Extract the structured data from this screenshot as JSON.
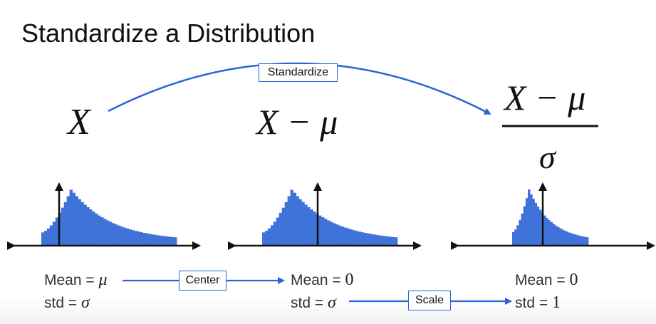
{
  "title": "Standardize a Distribution",
  "arc_label": "Standardize",
  "expressions": {
    "original": "X",
    "centered": "X − μ",
    "scaled_numerator": "X − μ",
    "scaled_denominator": "σ"
  },
  "stats": {
    "left": {
      "mean_label": "Mean = ",
      "mean_value": "μ",
      "std_label": "std = ",
      "std_value": "σ"
    },
    "middle": {
      "mean_label": "Mean = ",
      "mean_value": "0",
      "std_label": "std = ",
      "std_value": "σ"
    },
    "right": {
      "mean_label": "Mean = ",
      "mean_value": "0",
      "std_label": "std = ",
      "std_value": "1"
    }
  },
  "steps": {
    "center_label": "Center",
    "scale_label": "Scale"
  },
  "colors": {
    "accent": "#2a64d6",
    "bars": "#3f73d9"
  }
}
